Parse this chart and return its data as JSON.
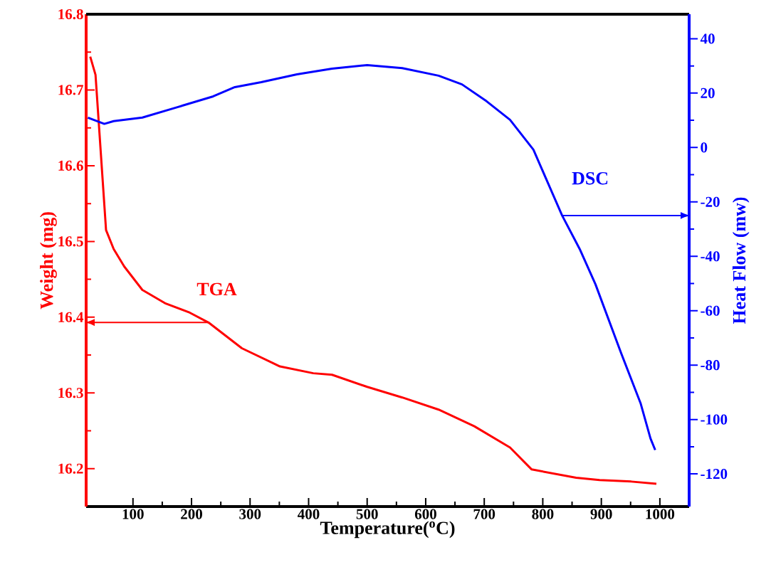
{
  "chart_data": {
    "type": "line",
    "xlabel": "Temperature($^{o}$C)",
    "ylabel": "Weight (mg)",
    "y2label": "Heat Flow (mw)",
    "xlim": [
      20,
      1050
    ],
    "xticks": [
      100,
      200,
      300,
      400,
      500,
      600,
      700,
      800,
      900,
      1000
    ],
    "ylim": [
      16.15,
      16.8
    ],
    "yticks": [
      16.2,
      16.3,
      16.4,
      16.5,
      16.6,
      16.7,
      16.8
    ],
    "y2lim": [
      -132,
      49
    ],
    "y2ticks": [
      -120,
      -100,
      -80,
      -60,
      -40,
      -20,
      0,
      20,
      40
    ],
    "line_style": "solid",
    "marker": "none",
    "grid": false,
    "legend": false,
    "series": [
      {
        "name": "TGA",
        "color": "#ff0000",
        "x": [
          27,
          36,
          54,
          67,
          85,
          116,
          156,
          197,
          229,
          286,
          351,
          408,
          440,
          500,
          560,
          622,
          683,
          744,
          781,
          857,
          897,
          951,
          994
        ],
        "values": [
          16.744,
          16.72,
          16.515,
          16.49,
          16.467,
          16.436,
          16.418,
          16.406,
          16.393,
          16.359,
          16.335,
          16.326,
          16.324,
          16.308,
          16.294,
          16.278,
          16.256,
          16.228,
          16.199,
          16.188,
          16.185,
          16.183,
          16.18
        ]
      },
      {
        "name": "DSC",
        "color": "#0000ff",
        "axis": "y2",
        "x": [
          23,
          51,
          67,
          116,
          177,
          237,
          274,
          319,
          380,
          440,
          500,
          560,
          622,
          662,
          704,
          744,
          784,
          833,
          863,
          890,
          934,
          967,
          984,
          992
        ],
        "values": [
          11,
          8.7,
          9.7,
          11,
          14.9,
          18.8,
          22.2,
          24,
          26.9,
          29,
          30.3,
          29.2,
          26.4,
          23.2,
          17,
          10.2,
          -0.8,
          -25,
          -37.3,
          -50.3,
          -75.7,
          -94,
          -107,
          -111.2
        ]
      }
    ]
  }
}
